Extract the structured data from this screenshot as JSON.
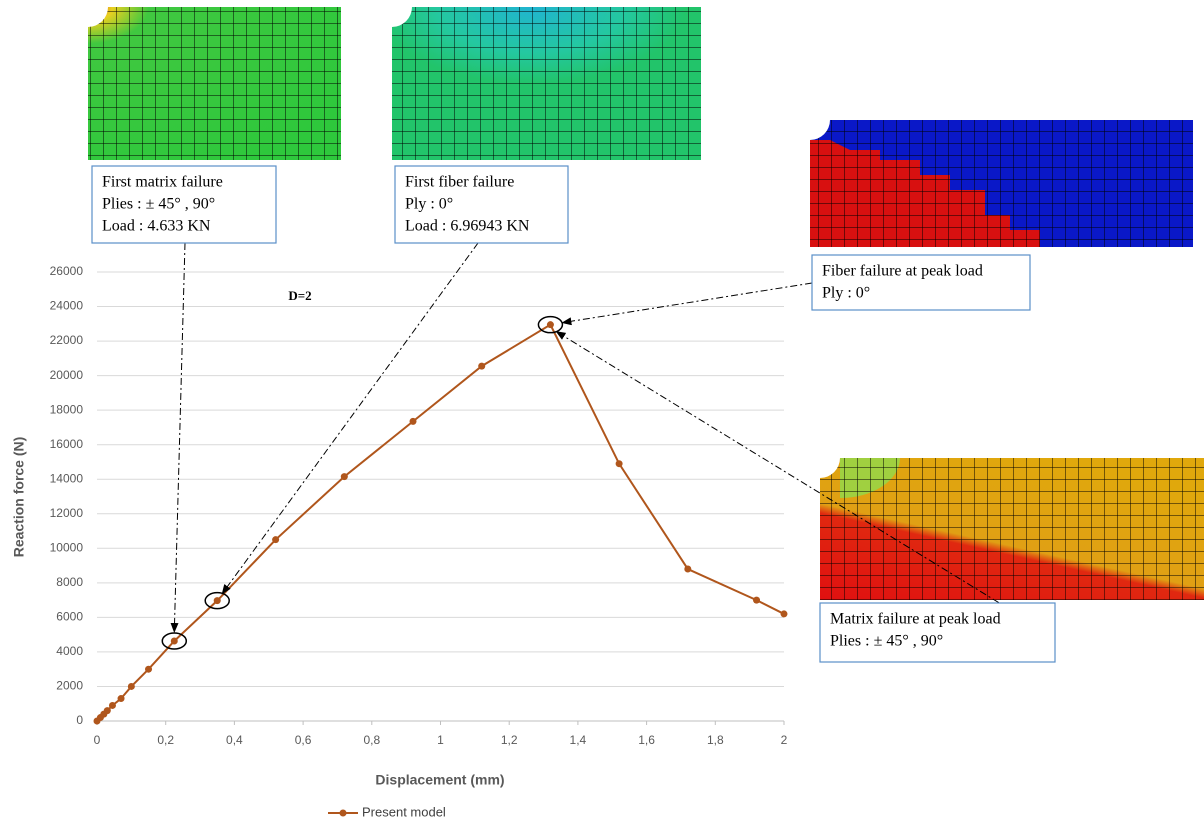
{
  "chart_data": {
    "type": "line",
    "x_label": "Displacement (mm)",
    "y_label": "Reaction force (N)",
    "label": "D=2",
    "x": [
      0,
      0.01,
      0.02,
      0.03,
      0.045,
      0.07,
      0.1,
      0.15,
      0.225,
      0.35,
      0.52,
      0.72,
      0.92,
      1.12,
      1.32,
      1.52,
      1.72,
      1.92,
      2
    ],
    "series": [
      {
        "name": "Present model",
        "color": "#b0561c",
        "values": [
          0,
          200,
          400,
          600,
          900,
          1300,
          2000,
          3000,
          4633,
          6969.43,
          10500,
          14150,
          17350,
          20550,
          22950,
          14900,
          8800,
          7000,
          6200
        ]
      }
    ],
    "xlim": [
      0,
      2
    ],
    "ylim": [
      0,
      26000
    ],
    "xticks": [
      0,
      {
        "value": 0.2,
        "label": "0,2"
      },
      {
        "value": 0.4,
        "label": "0,4"
      },
      {
        "value": 0.6,
        "label": "0,6"
      },
      {
        "value": 0.8,
        "label": "0,8"
      },
      1,
      {
        "value": 1.2,
        "label": "1,2"
      },
      {
        "value": 1.4,
        "label": "1,4"
      },
      {
        "value": 1.6,
        "label": "1,6"
      },
      {
        "value": 1.8,
        "label": "1,8"
      },
      2
    ],
    "yticks": [
      0,
      2000,
      4000,
      6000,
      8000,
      10000,
      12000,
      14000,
      16000,
      18000,
      20000,
      22000,
      24000,
      26000
    ],
    "grid": true,
    "annotations": [
      {
        "lines": [
          "First matrix failure",
          "Plies : ± 45° , 90°",
          "Load : 4.633 KN"
        ]
      },
      {
        "lines": [
          "First fiber failure",
          "Ply : 0°",
          "Load : 6.96943 KN"
        ]
      },
      {
        "lines": [
          "Fiber failure at peak load",
          "Ply : 0°"
        ]
      },
      {
        "lines": [
          "Matrix failure at peak load",
          "Plies : ± 45° , 90°"
        ]
      }
    ]
  }
}
